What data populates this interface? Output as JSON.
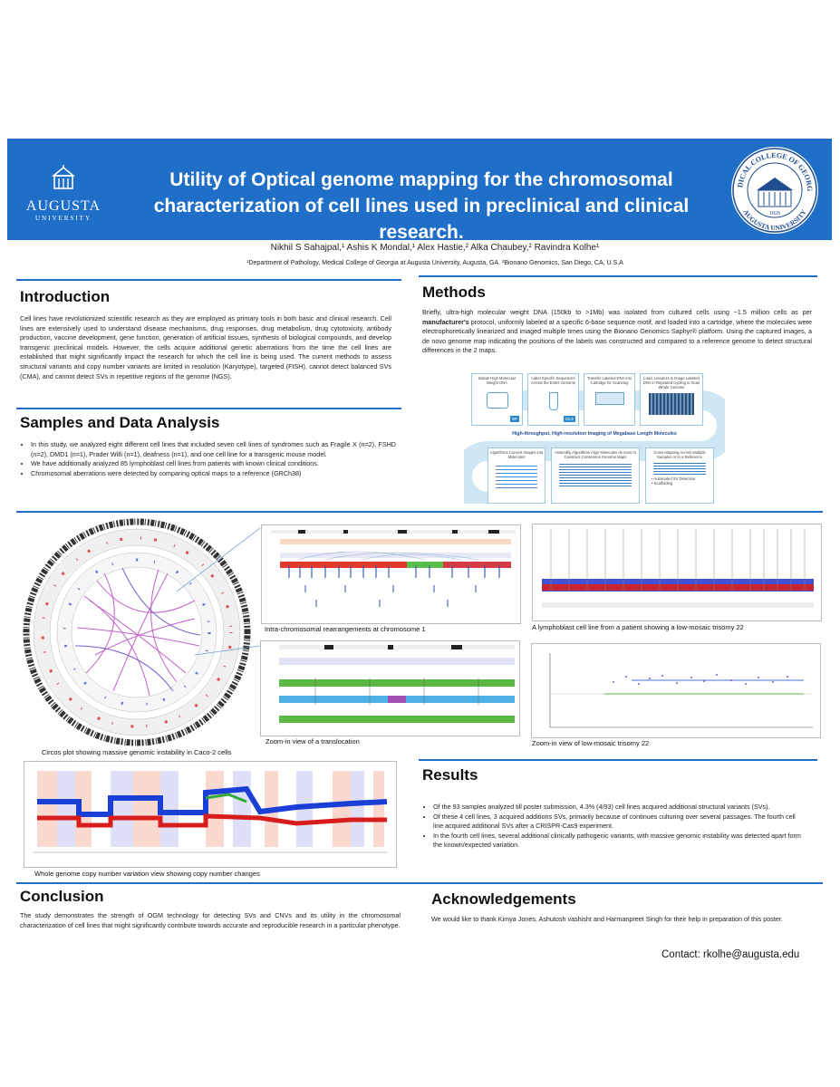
{
  "header": {
    "logo_name": "AUGUSTA",
    "logo_sub": "UNIVERSITY",
    "title_line1": "Utility of Optical genome mapping for the chromosomal",
    "title_line2": "characterization of cell lines used in preclinical and clinical research.",
    "seal_top": "MEDICAL COLLEGE OF GEORGIA",
    "seal_bottom": "AUGUSTA UNIVERSITY",
    "seal_year": "1828",
    "authors": "Nikhil S Sahajpal,¹ Ashis K Mondal,¹ Alex Hastie,² Alka Chaubey,² Ravindra  Kolhe¹",
    "affiliation": "¹Department of Pathology, Medical College of Georgia at Augusta University, Augusta, GA. ²Bionano Genomics, San Diego, CA, U.S.A"
  },
  "introduction": {
    "title": "Introduction",
    "text": "Cell lines have revolutionized scientific research as they are employed as primary tools in both basic and clinical research. Cell lines are extensively used to understand disease mechanisms, drug responses, drug metabolism, drug cytotoxicity, antibody production, vaccine development, gene function, generation of artificial tissues, synthesis of biological compounds, and develop transgenic preclinical models. However, the cells acquire additional genetic aberrations from the time the cell lines are established that might significantly impact the research for which the cell line is being used. The current methods to assess structural variants and copy number variants are limited in resolution (Karyotype), targeted (FISH), cannot detect balanced SVs (CMA), and cannot detect SVs in repetitive regions of the genome (NGS)."
  },
  "samples": {
    "title": "Samples and Data Analysis",
    "bullets": [
      "In this study, we analyzed eight different cell lines that included seven cell lines of syndromes such as Fragile X (n=2), FSHD (n=2), DMD1 (n=1), Prader Willi (n=1), deafness (n=1), and one cell line for a transgenic mouse model.",
      "We have additionally analyzed 85 lymphoblast cell lines from patients with known clinical conditions.",
      "Chromosomal aberrations were detected by comparing optical maps to a reference (GRCh38)"
    ]
  },
  "methods": {
    "title": "Methods",
    "text_a": "Briefly, ultra-high molecular weight DNA (150kb to >1Mb) was isolated from cultured cells using ~1.5 million cells as per ",
    "text_bold": "manufacturer's",
    "text_b": " protocol, uniformly labeled at a specific 6-base sequence motif, and loaded into a cartridge, where the molecules were electrophoretically linearized and imaged multiple times using the Bionano Genomics Saphyr® platform. Using the captured images, a de novo genome map indicating the positions of the labels was constructed and compared to a reference genome to detect structural differences in the 2 maps.",
    "workflow": {
      "steps_top": [
        "Isolate High Molecular Weight DNA",
        "Label Specific Sequences Across the Entire Genome",
        "Transfer Labeled DNA into Cartridge for Scanning",
        "Load, Linearize & Image Labeled DNA in Repeated Cycling to Scan Whole Genome"
      ],
      "chips": [
        "SP",
        "DLS"
      ],
      "banner": "High-throughput, High-resolution Imaging of Megabase Length Molecules",
      "steps_bottom": [
        "Algorithms Convert Images into Molecules",
        "Assembly Algorithms Align Molecules de novo to Construct Consensus Genome Maps",
        "Cross Mapping Across Multiple Samples or to a Reference"
      ],
      "sub_bottom": [
        "• Automated SV Detection",
        "• Scaffolding"
      ]
    }
  },
  "figures": {
    "circos_caption": "Circos plot showing massive genomic instability in Caco-2 cells",
    "chr1_caption": "Intra-chromosomal rearrangements at chromosome 1",
    "trisomy_caption": "A lymphoblast cell line from a patient showing a low-mosaic trisomy 22",
    "translocation_caption": "Zoom-in view of a translocation",
    "zoom_trisomy_caption": "Zoom-in view of low-mosaic trisomy 22",
    "cnv_caption": "Whole genome copy number variation view showing copy number changes"
  },
  "results": {
    "title": "Results",
    "bullets": [
      "Of the 93 samples analyzed till poster submission, 4.3% (4/93) cell lines acquired additional structural variants (SVs).",
      "Of these 4 cell lines, 3 acquired additions SVs, primarily because of continues culturing over several passages. The fourth cell line acquired additional SVs after a CRISPR-Cas9 experiment.",
      "In the fourth cell lines, several additional clinically pathogenic variants, with massive genomic instability was detected apart form the known/expected variation."
    ]
  },
  "conclusion": {
    "title": "Conclusion",
    "text": "The study demonstrates the strength of OGM technology for detecting SVs and CNVs and its utility in the chromosomal characterization of cell lines that might significantly contribute towards accurate and reproducible research in a particular phenotype."
  },
  "acknowledgements": {
    "title": "Acknowledgements",
    "text": "We would like to thank Kimya Jones, Ashutosh vashisht and Harmanpreet Singh for their help in preparation of this poster."
  },
  "contact": "Contact: rkolhe@augusta.edu",
  "colors": {
    "brand_blue": "#1f6fc9",
    "cnv_blue": "#1a3fd6",
    "cnv_red": "#d81c1c",
    "ref_green": "#5cb844",
    "ref_blue": "#4fb0e6"
  }
}
